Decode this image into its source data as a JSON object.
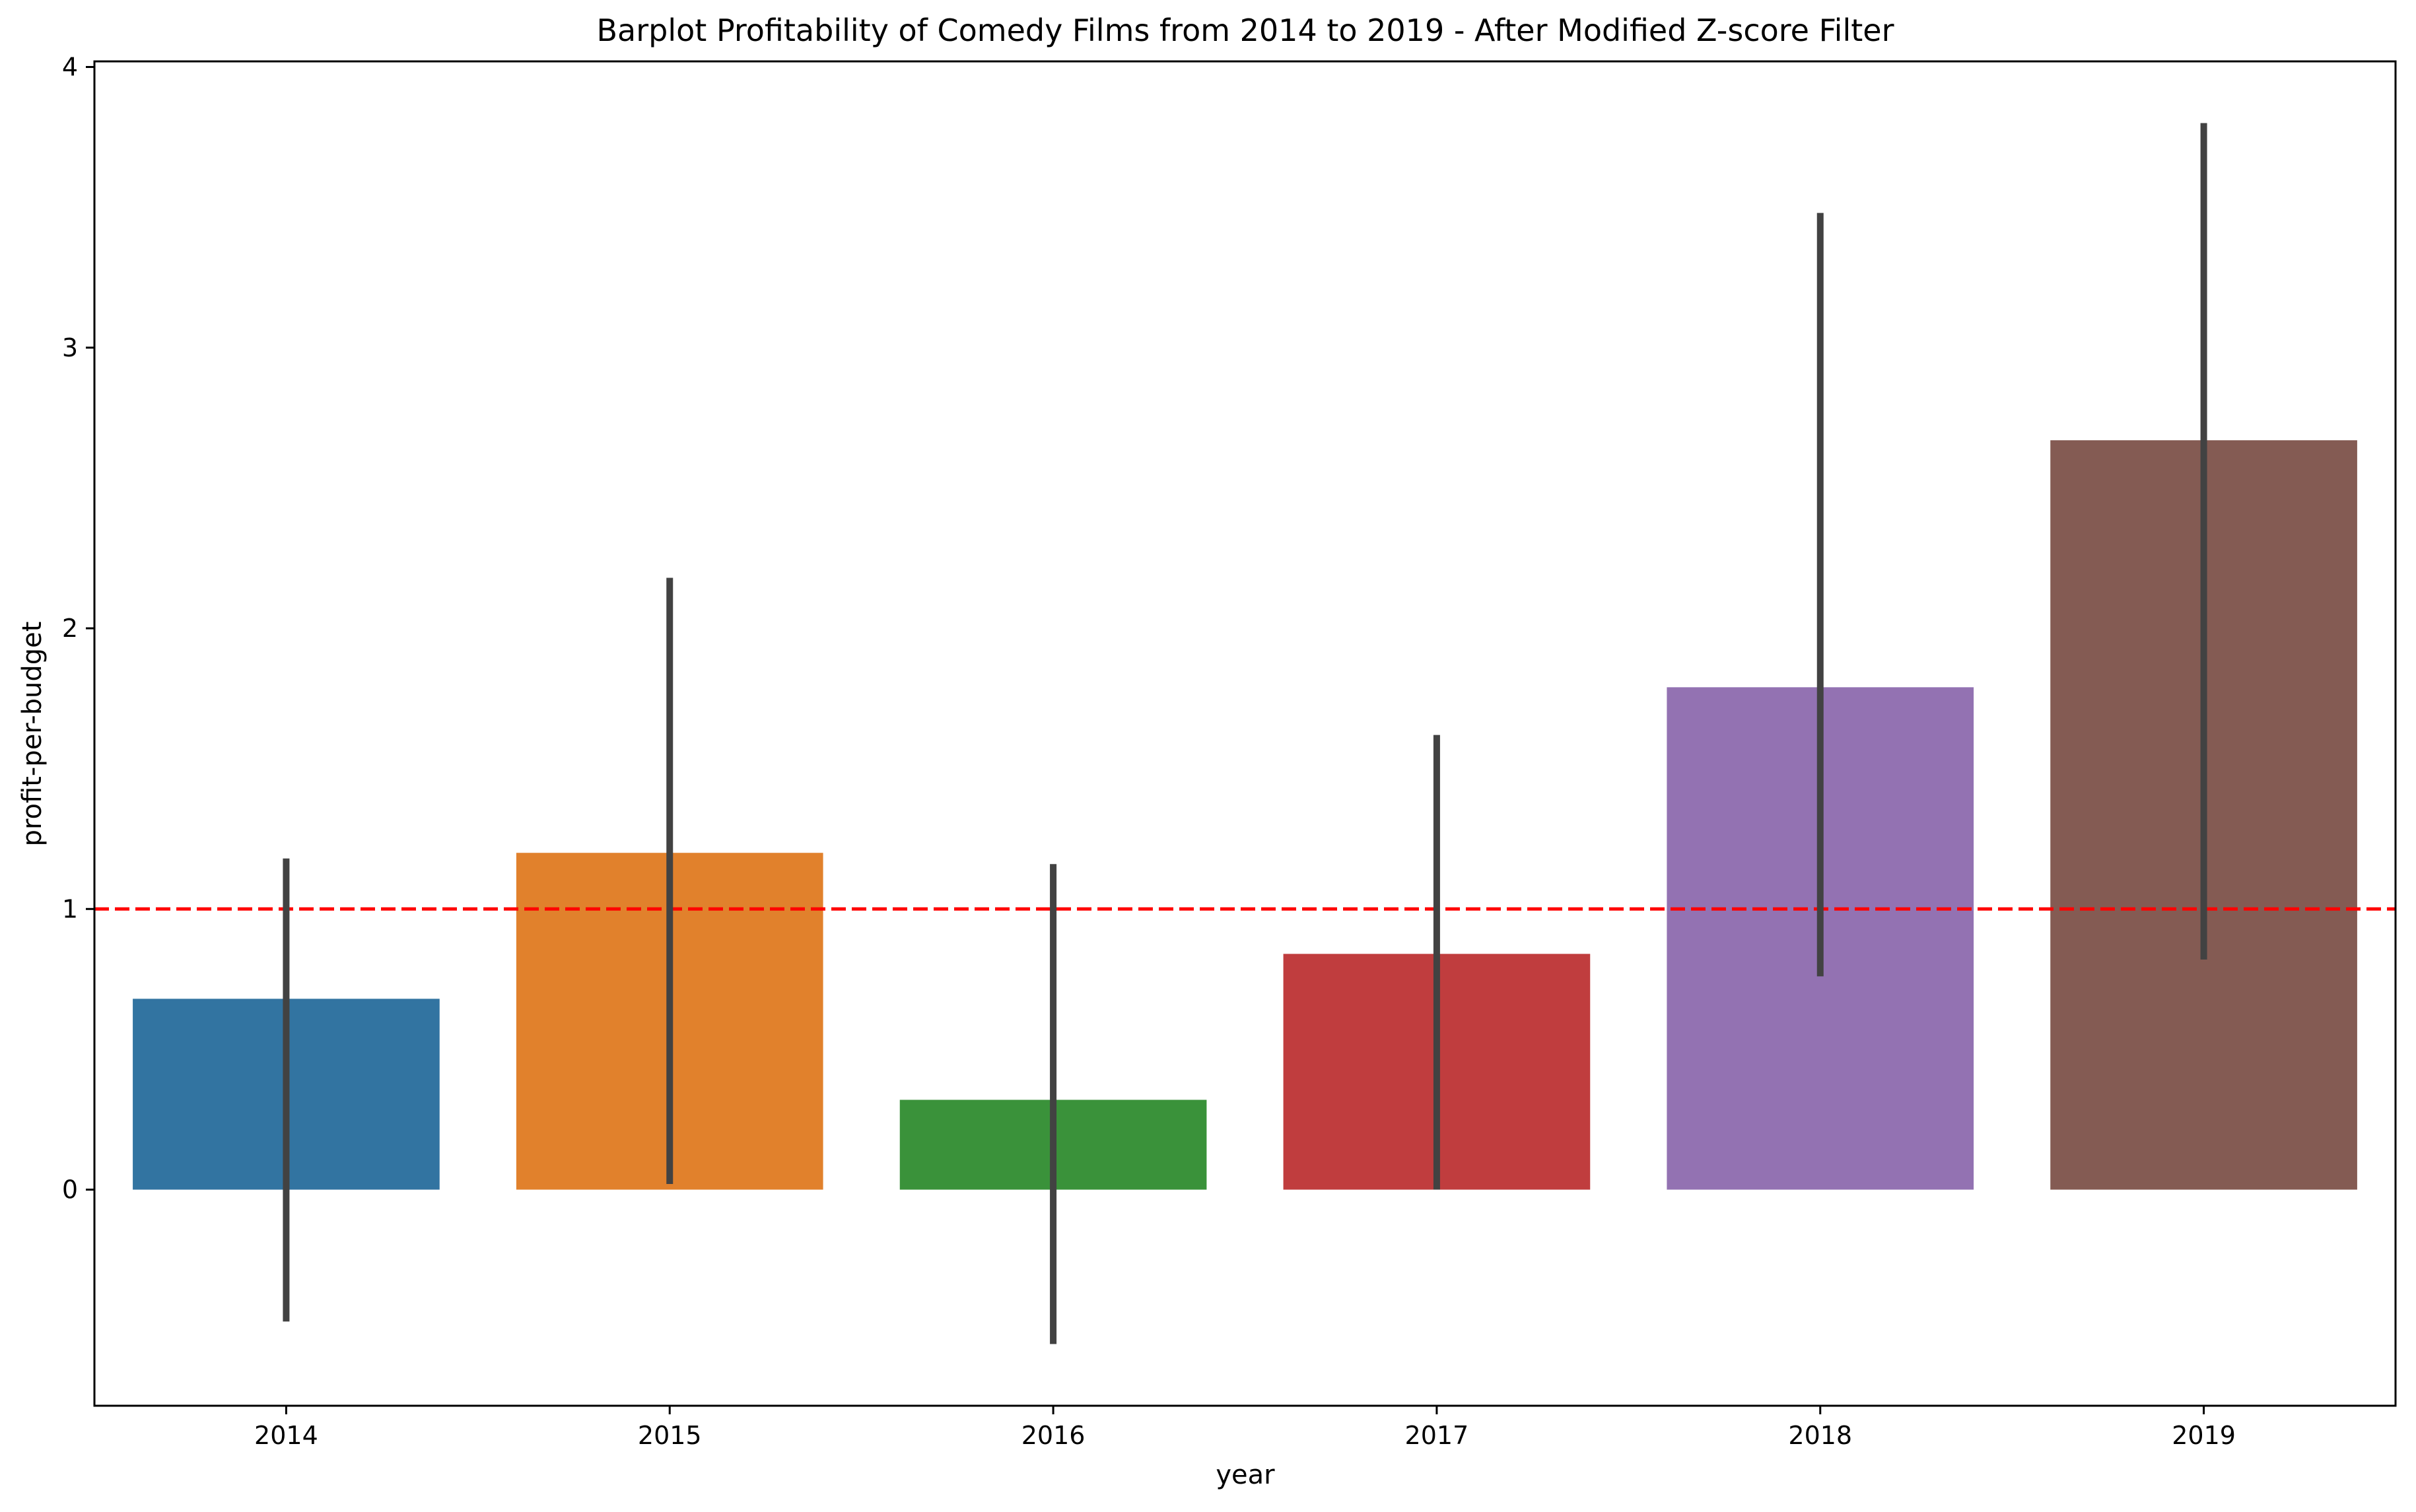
{
  "chart_data": {
    "type": "bar",
    "title": "Barplot Profitability of Comedy Films from 2014 to 2019 - After Modified Z-score Filter",
    "xlabel": "year",
    "ylabel": "profit-per-budget",
    "categories": [
      "2014",
      "2015",
      "2016",
      "2017",
      "2018",
      "2019"
    ],
    "values": [
      0.68,
      1.2,
      0.32,
      0.84,
      1.79,
      2.67
    ],
    "error_bars": {
      "lower": [
        -0.47,
        0.02,
        -0.55,
        0.0,
        0.76,
        0.82
      ],
      "upper": [
        1.18,
        2.18,
        1.16,
        1.62,
        3.48,
        3.8
      ]
    },
    "colors": [
      "#3274a1",
      "#e1812c",
      "#3a923a",
      "#c03d3e",
      "#9372b2",
      "#845b53"
    ],
    "error_bar_color": "#424242",
    "reference_line": {
      "value": 1,
      "color": "#ff0000",
      "style": "dashed"
    },
    "ylim": [
      -0.77,
      4.02
    ],
    "yticks": [
      0,
      1,
      2,
      3,
      4
    ],
    "grid": false,
    "legend": "none"
  }
}
